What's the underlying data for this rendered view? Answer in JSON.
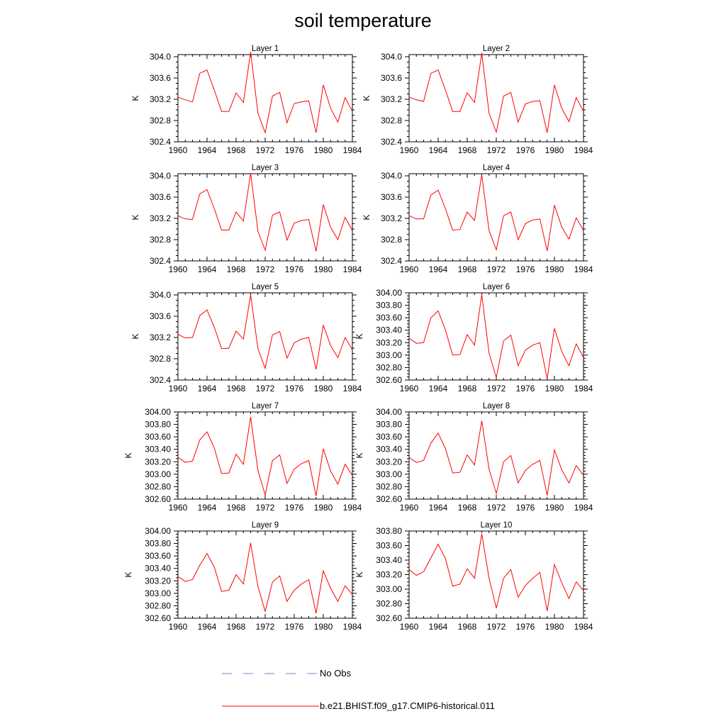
{
  "title": "soil temperature",
  "legend": {
    "obs_label": "No Obs",
    "obs_color": "#7b7bd6",
    "model_label": "b.e21.BHIST.f09_g17.CMIP6-historical.011",
    "model_color": "#ff0000"
  },
  "chart_data": [
    {
      "type": "line",
      "title": "Layer 1",
      "ylabel": "K",
      "xlim": [
        1960,
        1984
      ],
      "ylim": [
        302.4,
        304.04
      ],
      "xticks": [
        1960,
        1964,
        1968,
        1972,
        1976,
        1980,
        1984
      ],
      "yticks": [
        "302.4",
        "302.8",
        "303.2",
        "303.6",
        "304.0"
      ],
      "x": [
        1960,
        1961,
        1962,
        1963,
        1964,
        1965,
        1966,
        1967,
        1968,
        1969,
        1970,
        1971,
        1972,
        1973,
        1974,
        1975,
        1976,
        1977,
        1978,
        1979,
        1980,
        1981,
        1982,
        1983,
        1984
      ],
      "series": [
        {
          "name": "b.e21.BHIST.f09_g17.CMIP6-historical.011",
          "values": [
            303.24,
            303.19,
            303.15,
            303.69,
            303.75,
            303.37,
            302.97,
            302.97,
            303.32,
            303.14,
            304.09,
            302.94,
            302.57,
            303.26,
            303.33,
            302.76,
            303.12,
            303.15,
            303.17,
            302.57,
            303.47,
            303.03,
            302.77,
            303.23,
            302.97
          ]
        }
      ]
    },
    {
      "type": "line",
      "title": "Layer 2",
      "ylabel": "K",
      "xlim": [
        1960,
        1984
      ],
      "ylim": [
        302.4,
        304.04
      ],
      "xticks": [
        1960,
        1964,
        1968,
        1972,
        1976,
        1980,
        1984
      ],
      "yticks": [
        "302.4",
        "302.8",
        "303.2",
        "303.6",
        "304.0"
      ],
      "x": [
        1960,
        1961,
        1962,
        1963,
        1964,
        1965,
        1966,
        1967,
        1968,
        1969,
        1970,
        1971,
        1972,
        1973,
        1974,
        1975,
        1976,
        1977,
        1978,
        1979,
        1980,
        1981,
        1982,
        1983,
        1984
      ],
      "series": [
        {
          "name": "b.e21.BHIST.f09_g17.CMIP6-historical.011",
          "values": [
            303.24,
            303.19,
            303.16,
            303.69,
            303.75,
            303.37,
            302.97,
            302.97,
            303.32,
            303.14,
            304.07,
            302.94,
            302.58,
            303.26,
            303.33,
            302.77,
            303.11,
            303.16,
            303.17,
            302.57,
            303.47,
            303.03,
            302.78,
            303.23,
            302.97
          ]
        }
      ]
    },
    {
      "type": "line",
      "title": "Layer 3",
      "ylabel": "K",
      "xlim": [
        1960,
        1984
      ],
      "ylim": [
        302.4,
        304.04
      ],
      "xticks": [
        1960,
        1964,
        1968,
        1972,
        1976,
        1980,
        1984
      ],
      "yticks": [
        "302.4",
        "302.8",
        "303.2",
        "303.6",
        "304.0"
      ],
      "x": [
        1960,
        1961,
        1962,
        1963,
        1964,
        1965,
        1966,
        1967,
        1968,
        1969,
        1970,
        1971,
        1972,
        1973,
        1974,
        1975,
        1976,
        1977,
        1978,
        1979,
        1980,
        1981,
        1982,
        1983,
        1984
      ],
      "series": [
        {
          "name": "b.e21.BHIST.f09_g17.CMIP6-historical.011",
          "values": [
            303.25,
            303.19,
            303.18,
            303.66,
            303.74,
            303.38,
            302.98,
            302.98,
            303.32,
            303.15,
            304.05,
            302.96,
            302.6,
            303.26,
            303.32,
            302.79,
            303.11,
            303.16,
            303.18,
            302.58,
            303.46,
            303.03,
            302.8,
            303.22,
            302.97
          ]
        }
      ]
    },
    {
      "type": "line",
      "title": "Layer 4",
      "ylabel": "K",
      "xlim": [
        1960,
        1984
      ],
      "ylim": [
        302.4,
        304.04
      ],
      "xticks": [
        1960,
        1964,
        1968,
        1972,
        1976,
        1980,
        1984
      ],
      "yticks": [
        "302.4",
        "302.8",
        "303.2",
        "303.6",
        "304.0"
      ],
      "x": [
        1960,
        1961,
        1962,
        1963,
        1964,
        1965,
        1966,
        1967,
        1968,
        1969,
        1970,
        1971,
        1972,
        1973,
        1974,
        1975,
        1976,
        1977,
        1978,
        1979,
        1980,
        1981,
        1982,
        1983,
        1984
      ],
      "series": [
        {
          "name": "b.e21.BHIST.f09_g17.CMIP6-historical.011",
          "values": [
            303.25,
            303.19,
            303.19,
            303.64,
            303.73,
            303.38,
            302.98,
            302.99,
            303.32,
            303.16,
            304.02,
            302.97,
            302.61,
            303.25,
            303.32,
            302.8,
            303.1,
            303.17,
            303.19,
            302.59,
            303.45,
            303.04,
            302.81,
            303.21,
            302.97
          ]
        }
      ]
    },
    {
      "type": "line",
      "title": "Layer 5",
      "ylabel": "K",
      "xlim": [
        1960,
        1984
      ],
      "ylim": [
        302.4,
        304.04
      ],
      "xticks": [
        1960,
        1964,
        1968,
        1972,
        1976,
        1980,
        1984
      ],
      "yticks": [
        "302.4",
        "302.8",
        "303.2",
        "303.6",
        "304.0"
      ],
      "x": [
        1960,
        1961,
        1962,
        1963,
        1964,
        1965,
        1966,
        1967,
        1968,
        1969,
        1970,
        1971,
        1972,
        1973,
        1974,
        1975,
        1976,
        1977,
        1978,
        1979,
        1980,
        1981,
        1982,
        1983,
        1984
      ],
      "series": [
        {
          "name": "b.e21.BHIST.f09_g17.CMIP6-historical.011",
          "values": [
            303.26,
            303.19,
            303.2,
            303.61,
            303.72,
            303.39,
            302.99,
            303.0,
            303.32,
            303.17,
            304.0,
            302.99,
            302.62,
            303.25,
            303.31,
            302.81,
            303.1,
            303.17,
            303.2,
            302.6,
            303.43,
            303.05,
            302.82,
            303.2,
            302.97
          ]
        }
      ]
    },
    {
      "type": "line",
      "title": "Layer 6",
      "ylabel": "K",
      "xlim": [
        1960,
        1984
      ],
      "ylim": [
        302.6,
        304.0
      ],
      "xticks": [
        1960,
        1964,
        1968,
        1972,
        1976,
        1980,
        1984
      ],
      "yticks": [
        "302.60",
        "302.80",
        "303.00",
        "303.20",
        "303.40",
        "303.60",
        "303.80",
        "304.00"
      ],
      "x": [
        1960,
        1961,
        1962,
        1963,
        1964,
        1965,
        1966,
        1967,
        1968,
        1969,
        1970,
        1971,
        1972,
        1973,
        1974,
        1975,
        1976,
        1977,
        1978,
        1979,
        1980,
        1981,
        1982,
        1983,
        1984
      ],
      "series": [
        {
          "name": "b.e21.BHIST.f09_g17.CMIP6-historical.011",
          "values": [
            303.27,
            303.19,
            303.2,
            303.6,
            303.71,
            303.4,
            303.0,
            303.01,
            303.33,
            303.16,
            303.97,
            303.03,
            302.64,
            303.23,
            303.32,
            302.83,
            303.08,
            303.16,
            303.2,
            302.62,
            303.43,
            303.06,
            302.83,
            303.18,
            302.96
          ]
        }
      ]
    },
    {
      "type": "line",
      "title": "Layer 7",
      "ylabel": "K",
      "xlim": [
        1960,
        1984
      ],
      "ylim": [
        302.6,
        304.0
      ],
      "xticks": [
        1960,
        1964,
        1968,
        1972,
        1976,
        1980,
        1984
      ],
      "yticks": [
        "302.60",
        "302.80",
        "303.00",
        "303.20",
        "303.40",
        "303.60",
        "303.80",
        "304.00"
      ],
      "x": [
        1960,
        1961,
        1962,
        1963,
        1964,
        1965,
        1966,
        1967,
        1968,
        1969,
        1970,
        1971,
        1972,
        1973,
        1974,
        1975,
        1976,
        1977,
        1978,
        1979,
        1980,
        1981,
        1982,
        1983,
        1984
      ],
      "series": [
        {
          "name": "b.e21.BHIST.f09_g17.CMIP6-historical.011",
          "values": [
            303.27,
            303.19,
            303.21,
            303.55,
            303.68,
            303.42,
            303.01,
            303.02,
            303.32,
            303.16,
            303.92,
            303.06,
            302.67,
            303.22,
            303.31,
            302.85,
            303.08,
            303.17,
            303.22,
            302.65,
            303.41,
            303.05,
            302.84,
            303.16,
            302.98
          ]
        }
      ]
    },
    {
      "type": "line",
      "title": "Layer 8",
      "ylabel": "K",
      "xlim": [
        1960,
        1984
      ],
      "ylim": [
        302.6,
        304.0
      ],
      "xticks": [
        1960,
        1964,
        1968,
        1972,
        1976,
        1980,
        1984
      ],
      "yticks": [
        "302.60",
        "302.80",
        "303.00",
        "303.20",
        "303.40",
        "303.60",
        "303.80",
        "304.00"
      ],
      "x": [
        1960,
        1961,
        1962,
        1963,
        1964,
        1965,
        1966,
        1967,
        1968,
        1969,
        1970,
        1971,
        1972,
        1973,
        1974,
        1975,
        1976,
        1977,
        1978,
        1979,
        1980,
        1981,
        1982,
        1983,
        1984
      ],
      "series": [
        {
          "name": "b.e21.BHIST.f09_g17.CMIP6-historical.011",
          "values": [
            303.27,
            303.19,
            303.22,
            303.5,
            303.66,
            303.41,
            303.02,
            303.03,
            303.31,
            303.15,
            303.86,
            303.08,
            302.69,
            303.2,
            303.3,
            302.86,
            303.06,
            303.16,
            303.22,
            302.66,
            303.39,
            303.07,
            302.86,
            303.14,
            302.98
          ]
        }
      ]
    },
    {
      "type": "line",
      "title": "Layer 9",
      "ylabel": "K",
      "xlim": [
        1960,
        1984
      ],
      "ylim": [
        302.6,
        304.0
      ],
      "xticks": [
        1960,
        1964,
        1968,
        1972,
        1976,
        1980,
        1984
      ],
      "yticks": [
        "302.60",
        "302.80",
        "303.00",
        "303.20",
        "303.40",
        "303.60",
        "303.80",
        "304.00"
      ],
      "x": [
        1960,
        1961,
        1962,
        1963,
        1964,
        1965,
        1966,
        1967,
        1968,
        1969,
        1970,
        1971,
        1972,
        1973,
        1974,
        1975,
        1976,
        1977,
        1978,
        1979,
        1980,
        1981,
        1982,
        1983,
        1984
      ],
      "series": [
        {
          "name": "b.e21.BHIST.f09_g17.CMIP6-historical.011",
          "values": [
            303.27,
            303.19,
            303.22,
            303.45,
            303.64,
            303.42,
            303.03,
            303.05,
            303.3,
            303.15,
            303.81,
            303.11,
            302.71,
            303.18,
            303.28,
            302.87,
            303.05,
            303.15,
            303.22,
            302.68,
            303.36,
            303.08,
            302.87,
            303.12,
            302.98
          ]
        }
      ]
    },
    {
      "type": "line",
      "title": "Layer 10",
      "ylabel": "K",
      "xlim": [
        1960,
        1984
      ],
      "ylim": [
        302.6,
        303.8
      ],
      "xticks": [
        1960,
        1964,
        1968,
        1972,
        1976,
        1980,
        1984
      ],
      "yticks": [
        "302.60",
        "302.80",
        "303.00",
        "303.20",
        "303.40",
        "303.60",
        "303.80"
      ],
      "x": [
        1960,
        1961,
        1962,
        1963,
        1964,
        1965,
        1966,
        1967,
        1968,
        1969,
        1970,
        1971,
        1972,
        1973,
        1974,
        1975,
        1976,
        1977,
        1978,
        1979,
        1980,
        1981,
        1982,
        1983,
        1984
      ],
      "series": [
        {
          "name": "b.e21.BHIST.f09_g17.CMIP6-historical.011",
          "values": [
            303.27,
            303.19,
            303.24,
            303.43,
            303.62,
            303.42,
            303.04,
            303.07,
            303.28,
            303.15,
            303.76,
            303.15,
            302.74,
            303.15,
            303.27,
            302.89,
            303.05,
            303.15,
            303.23,
            302.7,
            303.34,
            303.09,
            302.87,
            303.1,
            302.98
          ]
        }
      ]
    }
  ]
}
